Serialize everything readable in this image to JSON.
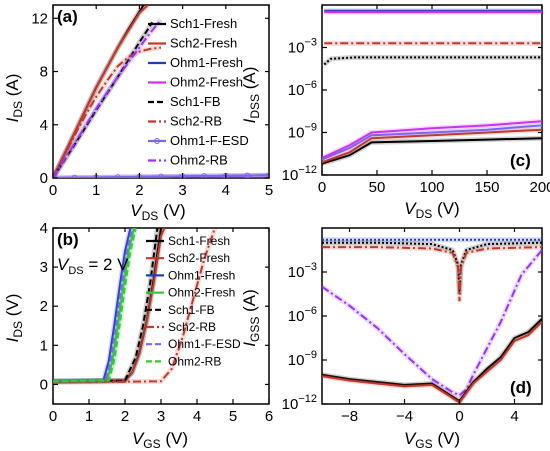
{
  "chart_data": [
    {
      "panel": "(a)",
      "type": "line",
      "xlabel": "V_DS (V)",
      "ylabel": "I_DS (A)",
      "xlim": [
        0,
        5
      ],
      "ylim": [
        0,
        13
      ],
      "xticks": [
        "0",
        "1",
        "2",
        "3",
        "4",
        "5"
      ],
      "yticks": [
        "0",
        "4",
        "8",
        "12"
      ],
      "legend_position": "right",
      "series": [
        {
          "name": "Sch1-Fresh",
          "color": "#000000",
          "dash": "solid",
          "x": [
            0,
            0.25,
            0.5,
            0.75,
            1.0,
            1.25,
            1.5,
            1.75,
            2.0,
            2.1
          ],
          "y": [
            0,
            1.7,
            3.4,
            5.1,
            6.8,
            8.3,
            9.8,
            11.2,
            12.5,
            13.0
          ]
        },
        {
          "name": "Sch2-Fresh",
          "color": "#c0392b",
          "dash": "solid",
          "x": [
            0,
            0.25,
            0.5,
            0.75,
            1.0,
            1.25,
            1.5,
            1.75,
            2.0,
            2.2
          ],
          "y": [
            0,
            1.7,
            3.4,
            5.1,
            6.8,
            8.3,
            9.8,
            11.1,
            12.4,
            13.0
          ]
        },
        {
          "name": "Ohm1-Fresh",
          "color": "#1f3fbf",
          "dash": "solid",
          "x": [
            0,
            0.5,
            1.0,
            1.5,
            2.0,
            2.5,
            3.0,
            3.5,
            4.0,
            4.5,
            5.0
          ],
          "y": [
            0,
            0.02,
            0.04,
            0.06,
            0.08,
            0.1,
            0.12,
            0.14,
            0.16,
            0.18,
            0.2
          ]
        },
        {
          "name": "Ohm2-Fresh",
          "color": "#cc33ee",
          "dash": "solid",
          "x": [
            0,
            0.5,
            1.0,
            1.5,
            2.0,
            2.5,
            3.0,
            3.5,
            4.0,
            4.5,
            5.0
          ],
          "y": [
            0,
            0.02,
            0.04,
            0.06,
            0.08,
            0.1,
            0.12,
            0.14,
            0.16,
            0.18,
            0.2
          ]
        },
        {
          "name": "Sch1-FB",
          "color": "#000000",
          "dash": "dash",
          "x": [
            0,
            0.5,
            1.0,
            1.5,
            2.0,
            2.3
          ],
          "y": [
            0,
            2.5,
            5.1,
            7.6,
            10.2,
            11.7
          ]
        },
        {
          "name": "Sch2-RB",
          "color": "#c0392b",
          "dash": "dashdot",
          "x": [
            0,
            0.25,
            0.5,
            0.75,
            1.0,
            1.25,
            1.5,
            1.75,
            2.0,
            2.25,
            2.5
          ],
          "y": [
            0,
            1.6,
            3.2,
            4.7,
            6.1,
            7.3,
            8.4,
            9.1,
            9.5,
            9.7,
            9.8
          ]
        },
        {
          "name": "Ohm1-F-ESD",
          "color": "#7b68ee",
          "dash": "marker",
          "x": [
            0,
            0.5,
            1.0,
            1.5,
            2.0,
            2.5,
            3.0,
            3.5,
            4.0,
            4.5,
            5.0
          ],
          "y": [
            0,
            0.02,
            0.04,
            0.06,
            0.08,
            0.1,
            0.12,
            0.14,
            0.16,
            0.18,
            0.2
          ]
        },
        {
          "name": "Ohm2-RB",
          "color": "#9b30ff",
          "dash": "dashdot",
          "x": [
            0,
            0.25,
            0.5,
            0.75,
            1.0,
            1.25,
            1.5,
            1.75,
            2.0,
            2.25,
            2.5
          ],
          "y": [
            0,
            1.3,
            2.6,
            3.9,
            5.2,
            6.4,
            7.6,
            8.7,
            9.8,
            10.9,
            11.9
          ]
        }
      ]
    },
    {
      "panel": "(b)",
      "type": "line",
      "xlabel": "V_GS (V)",
      "ylabel": "I_DS (V)",
      "annotation": "V_DS = 2 V",
      "xlim": [
        0,
        6
      ],
      "ylim": [
        -0.5,
        4
      ],
      "xticks": [
        "0",
        "1",
        "2",
        "3",
        "4",
        "5",
        "6"
      ],
      "yticks": [
        "0",
        "1",
        "2",
        "3",
        "4"
      ],
      "legend_position": "right",
      "series": [
        {
          "name": "Sch1-Fresh",
          "color": "#000000",
          "dash": "solid",
          "x": [
            0,
            1,
            2,
            2.2,
            2.4,
            2.6,
            2.8,
            3.0
          ],
          "y": [
            0.08,
            0.08,
            0.1,
            0.3,
            0.8,
            1.6,
            2.7,
            4.0
          ]
        },
        {
          "name": "Sch2-Fresh",
          "color": "#c0392b",
          "dash": "solid",
          "x": [
            0,
            1,
            2,
            2.2,
            2.4,
            2.6,
            2.8,
            3.0,
            3.1
          ],
          "y": [
            0.08,
            0.08,
            0.1,
            0.3,
            0.8,
            1.6,
            2.6,
            3.8,
            4.0
          ]
        },
        {
          "name": "Ohm1-Fresh",
          "color": "#1f3fbf",
          "dash": "solid",
          "x": [
            0,
            1.4,
            1.55,
            1.7,
            1.85,
            2.0,
            2.15
          ],
          "y": [
            0.08,
            0.1,
            0.6,
            1.5,
            2.5,
            3.4,
            4.0
          ]
        },
        {
          "name": "Ohm2-Fresh",
          "color": "#33cc33",
          "dash": "solid",
          "x": [
            0,
            1.5,
            1.65,
            1.8,
            1.95,
            2.1,
            2.25
          ],
          "y": [
            0.08,
            0.1,
            0.6,
            1.5,
            2.5,
            3.4,
            4.0
          ]
        },
        {
          "name": "Sch1-FB",
          "color": "#000000",
          "dash": "dash",
          "x": [
            0,
            2,
            2.3,
            2.5,
            2.7,
            2.9
          ],
          "y": [
            0.08,
            0.1,
            0.7,
            1.5,
            2.6,
            4.0
          ]
        },
        {
          "name": "Sch2-RB",
          "color": "#c0392b",
          "dash": "dashdot",
          "x": [
            0,
            3.0,
            3.3,
            3.6,
            3.9,
            4.2,
            4.5
          ],
          "y": [
            0.05,
            0.08,
            0.4,
            1.2,
            2.2,
            3.2,
            4.0
          ]
        },
        {
          "name": "Ohm1-F-ESD",
          "color": "#7b68ee",
          "dash": "dash",
          "x": [
            0,
            1.45,
            1.6,
            1.75,
            1.9,
            2.05,
            2.2
          ],
          "y": [
            0.08,
            0.1,
            0.6,
            1.5,
            2.5,
            3.4,
            4.0
          ]
        },
        {
          "name": "Ohm2-RB",
          "color": "#33cc33",
          "dash": "dash",
          "x": [
            0,
            1.55,
            1.7,
            1.85,
            2.0,
            2.15,
            2.3
          ],
          "y": [
            0.08,
            0.1,
            0.6,
            1.5,
            2.5,
            3.4,
            4.0
          ]
        }
      ]
    },
    {
      "panel": "(c)",
      "type": "line",
      "xlabel": "V_DS (V)",
      "ylabel": "I_DSS (A)",
      "xlim": [
        0,
        200
      ],
      "ylim_log10": [
        -12,
        0
      ],
      "xticks": [
        "0",
        "50",
        "100",
        "150",
        "200"
      ],
      "yticks": [
        "10^-12",
        "10^-9",
        "10^-6",
        "10^-3"
      ],
      "series": [
        {
          "name": "Ohm1-Fresh",
          "color": "#1f3fbf",
          "dash": "solid",
          "x": [
            2,
            200
          ],
          "log10y": [
            -0.4,
            -0.4
          ]
        },
        {
          "name": "Ohm2-Fresh",
          "color": "#cc33ee",
          "dash": "solid",
          "x": [
            2,
            200
          ],
          "log10y": [
            -0.5,
            -0.5
          ]
        },
        {
          "name": "Sch2-RB",
          "color": "#c0392b",
          "dash": "dashdot",
          "x": [
            2,
            200
          ],
          "log10y": [
            -2.7,
            -2.7
          ]
        },
        {
          "name": "Sch1-FB",
          "color": "#000000",
          "dash": "dot",
          "x": [
            2,
            8,
            30,
            200
          ],
          "log10y": [
            -4.2,
            -3.8,
            -3.7,
            -3.7
          ]
        },
        {
          "name": "Sch1-Fresh",
          "color": "#000000",
          "dash": "solid",
          "x": [
            0,
            25,
            45,
            100,
            150,
            200
          ],
          "log10y": [
            -11.2,
            -10.6,
            -9.7,
            -9.6,
            -9.5,
            -9.4
          ]
        },
        {
          "name": "Sch2-Fresh",
          "color": "#c0392b",
          "dash": "solid",
          "x": [
            0,
            25,
            45,
            100,
            150,
            200
          ],
          "log10y": [
            -11.1,
            -10.4,
            -9.4,
            -9.2,
            -9.0,
            -8.8
          ]
        },
        {
          "name": "Ohm1-F-ESD",
          "color": "#7b68ee",
          "dash": "solid",
          "x": [
            0,
            25,
            45,
            100,
            150,
            200
          ],
          "log10y": [
            -10.9,
            -10.1,
            -9.2,
            -9.0,
            -8.8,
            -8.5
          ]
        },
        {
          "name": "Ohm2-RB",
          "color": "#cc33ee",
          "dash": "solid",
          "x": [
            0,
            25,
            45,
            100,
            150,
            200
          ],
          "log10y": [
            -10.8,
            -9.9,
            -9.0,
            -8.7,
            -8.5,
            -8.2
          ]
        }
      ]
    },
    {
      "panel": "(d)",
      "type": "line",
      "xlabel": "V_GS (V)",
      "ylabel": "I_GSS (A)",
      "xlim": [
        -10,
        6
      ],
      "ylim_log10": [
        -12,
        0
      ],
      "xticks": [
        "-8",
        "-4",
        "0",
        "4"
      ],
      "yticks": [
        "10^-12",
        "10^-9",
        "10^-6",
        "10^-3"
      ],
      "series": [
        {
          "name": "Ohm1-Fresh",
          "color": "#1f3fbf",
          "dash": "dot",
          "x": [
            -10,
            -6,
            -2,
            0,
            2,
            6
          ],
          "log10y": [
            -0.8,
            -0.8,
            -0.8,
            -0.8,
            -0.8,
            -0.8
          ]
        },
        {
          "name": "Sch1-FB",
          "color": "#000000",
          "dash": "dot",
          "x": [
            -10,
            -6,
            -2,
            -0.5,
            -0.1,
            0,
            0.1,
            0.5,
            2,
            6
          ],
          "log10y": [
            -1.0,
            -1.0,
            -1.1,
            -1.5,
            -2.5,
            -4.5,
            -2.5,
            -1.5,
            -1.1,
            -1.0
          ]
        },
        {
          "name": "Sch2-RB",
          "color": "#c0392b",
          "dash": "dashdot",
          "x": [
            -10,
            -6,
            -2,
            -0.5,
            -0.1,
            0,
            0.1,
            0.5,
            2,
            6
          ],
          "log10y": [
            -1.3,
            -1.3,
            -1.4,
            -1.7,
            -2.7,
            -5.0,
            -2.7,
            -1.7,
            -1.4,
            -1.3
          ]
        },
        {
          "name": "Ohm2-RB",
          "color": "#9b30ff",
          "dash": "dashdot",
          "x": [
            -10,
            -8,
            -6,
            -4,
            -2,
            -0.5,
            0,
            0.5,
            1,
            2,
            3,
            4.5,
            6
          ],
          "log10y": [
            -4.0,
            -5.3,
            -6.8,
            -8.6,
            -10.3,
            -11.2,
            -11.4,
            -11.0,
            -10.0,
            -8.2,
            -6.4,
            -3.2,
            -1.5
          ]
        },
        {
          "name": "Sch1-Fresh",
          "color": "#000000",
          "dash": "solid",
          "x": [
            -10,
            -8,
            -6,
            -4,
            -2,
            -1,
            0,
            1,
            2,
            3,
            4,
            5,
            6
          ],
          "log10y": [
            -10.0,
            -10.3,
            -10.5,
            -10.7,
            -10.6,
            -11.2,
            -11.8,
            -10.5,
            -9.6,
            -8.8,
            -7.5,
            -7.1,
            -6.2
          ]
        },
        {
          "name": "Sch2-Fresh",
          "color": "#c0392b",
          "dash": "solid",
          "x": [
            -10,
            -8,
            -6,
            -4,
            -2,
            -1,
            0,
            1,
            2,
            3,
            4,
            5,
            6
          ],
          "log10y": [
            -10.1,
            -10.4,
            -10.6,
            -10.8,
            -10.7,
            -11.3,
            -11.9,
            -10.6,
            -9.8,
            -9.0,
            -7.7,
            -7.3,
            -6.4
          ]
        }
      ]
    }
  ]
}
